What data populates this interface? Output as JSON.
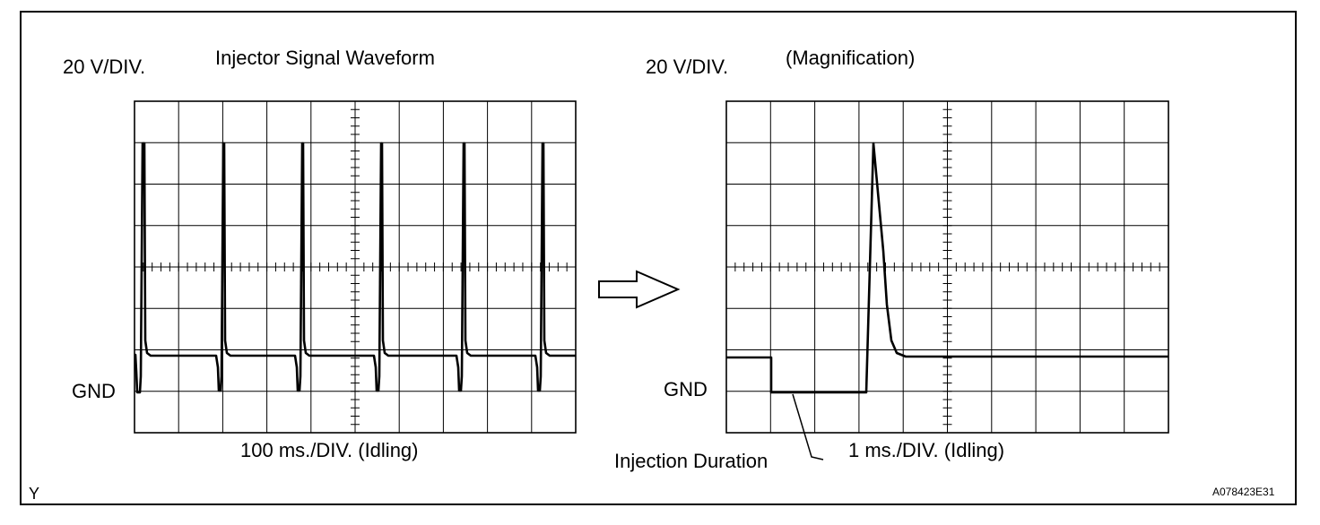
{
  "left_panel": {
    "scale_label": "20 V/DIV.",
    "title": "Injector Signal Waveform",
    "gnd_label": "GND",
    "time_label": "100 ms./DIV. (Idling)"
  },
  "right_panel": {
    "scale_label": "20 V/DIV.",
    "title": "(Magnification)",
    "gnd_label": "GND",
    "time_label": "1 ms./DIV. (Idling)",
    "callout": "Injection Duration"
  },
  "corner_mark": "Y",
  "figure_id": "A078423E31",
  "arrow_icon": "right-arrow-icon"
}
